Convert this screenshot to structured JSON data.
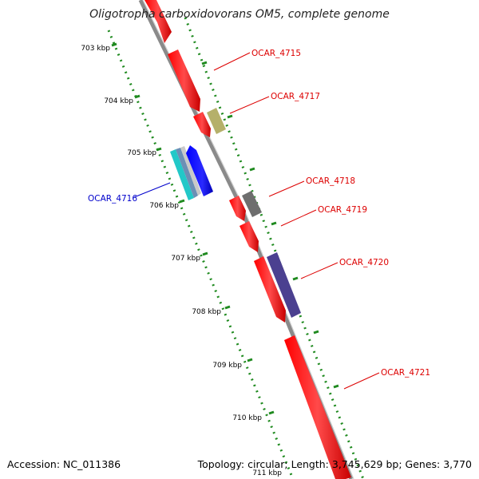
{
  "title": "Oligotropha carboxidovorans OM5, complete genome",
  "footer": {
    "accession": "Accession: NC_011386",
    "summary": "Topology: circular; Length: 3,745,629 bp; Genes: 3,770"
  },
  "scale_ticks": [
    "703 kbp",
    "704 kbp",
    "705 kbp",
    "706 kbp",
    "707 kbp",
    "708 kbp",
    "709 kbp",
    "710 kbp",
    "711 kbp"
  ],
  "genes": [
    {
      "id": "gene-upper",
      "label": "",
      "color": "#ff0000"
    },
    {
      "id": "ocar-4715",
      "label": "OCAR_4715",
      "color": "#ff0000"
    },
    {
      "id": "ocar-4717",
      "label": "OCAR_4717",
      "color": "#ff0000"
    },
    {
      "id": "ocar-4717-feature",
      "label": "",
      "color": "#b5b06a"
    },
    {
      "id": "ocar-4716",
      "label": "OCAR_4716",
      "color": "#0000ff"
    },
    {
      "id": "ocar-4716-feature-cyan",
      "label": "",
      "color": "#22c8c8"
    },
    {
      "id": "ocar-4716-feature-blue",
      "label": "",
      "color": "#6b8fb5"
    },
    {
      "id": "ocar-4716-feature-grey",
      "label": "",
      "color": "#b9b9b9"
    },
    {
      "id": "ocar-4718",
      "label": "OCAR_4718",
      "color": "#ff0000"
    },
    {
      "id": "ocar-4718-feature",
      "label": "",
      "color": "#6e6e6e"
    },
    {
      "id": "ocar-4719",
      "label": "OCAR_4719",
      "color": "#ff0000"
    },
    {
      "id": "ocar-4720",
      "label": "OCAR_4720",
      "color": "#ff0000"
    },
    {
      "id": "ocar-4720-feature",
      "label": "",
      "color": "#4b4090"
    },
    {
      "id": "ocar-4721",
      "label": "OCAR_4721",
      "color": "#ff0000"
    }
  ],
  "colors": {
    "backbone": "#8a8a8a",
    "tick_track": "#1f8a1f",
    "forward_label": "#dd0000",
    "reverse_label": "#0000cc"
  }
}
